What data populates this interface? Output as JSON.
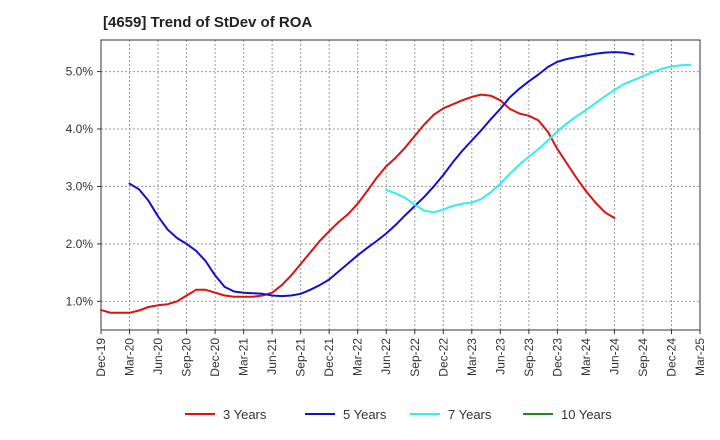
{
  "chart_data": {
    "type": "line",
    "title": "[4659]  Trend of StDev of ROA",
    "xlabel": "",
    "ylabel": "",
    "x_categories": [
      "Dec-19",
      "Mar-20",
      "Jun-20",
      "Sep-20",
      "Dec-20",
      "Mar-21",
      "Jun-21",
      "Sep-21",
      "Dec-21",
      "Mar-22",
      "Jun-22",
      "Sep-22",
      "Dec-22",
      "Mar-23",
      "Jun-23",
      "Sep-23",
      "Dec-23",
      "Mar-24",
      "Jun-24",
      "Sep-24",
      "Dec-24",
      "Mar-25"
    ],
    "ylim": [
      0.5,
      5.55
    ],
    "yticks": [
      1.0,
      2.0,
      3.0,
      4.0,
      5.0
    ],
    "ytick_labels": [
      "1.0%",
      "2.0%",
      "3.0%",
      "4.0%",
      "5.0%"
    ],
    "grid": true,
    "legend_position": "bottom",
    "series": [
      {
        "name": "3 Years",
        "color": "#dd1111",
        "values": [
          [
            0,
            0.85
          ],
          [
            1,
            0.8
          ],
          [
            2,
            0.8
          ],
          [
            3,
            0.8
          ],
          [
            4,
            0.84
          ],
          [
            5,
            0.9
          ],
          [
            6,
            0.93
          ],
          [
            7,
            0.95
          ],
          [
            8,
            1.0
          ],
          [
            9,
            1.1
          ],
          [
            10,
            1.2
          ],
          [
            11,
            1.2
          ],
          [
            12,
            1.15
          ],
          [
            13,
            1.1
          ],
          [
            14,
            1.08
          ],
          [
            15,
            1.08
          ],
          [
            16,
            1.08
          ],
          [
            17,
            1.1
          ],
          [
            18,
            1.15
          ],
          [
            19,
            1.28
          ],
          [
            20,
            1.45
          ],
          [
            21,
            1.65
          ],
          [
            22,
            1.85
          ],
          [
            23,
            2.05
          ],
          [
            24,
            2.22
          ],
          [
            25,
            2.38
          ],
          [
            26,
            2.52
          ],
          [
            27,
            2.7
          ],
          [
            28,
            2.92
          ],
          [
            29,
            3.15
          ],
          [
            30,
            3.35
          ],
          [
            31,
            3.5
          ],
          [
            32,
            3.68
          ],
          [
            33,
            3.88
          ],
          [
            34,
            4.08
          ],
          [
            35,
            4.25
          ],
          [
            36,
            4.36
          ],
          [
            37,
            4.43
          ],
          [
            38,
            4.5
          ],
          [
            39,
            4.56
          ],
          [
            40,
            4.6
          ],
          [
            41,
            4.58
          ],
          [
            42,
            4.5
          ],
          [
            43,
            4.35
          ],
          [
            44,
            4.27
          ],
          [
            45,
            4.23
          ],
          [
            46,
            4.15
          ],
          [
            47,
            3.95
          ],
          [
            48,
            3.65
          ],
          [
            49,
            3.4
          ],
          [
            50,
            3.15
          ],
          [
            51,
            2.92
          ],
          [
            52,
            2.72
          ],
          [
            53,
            2.55
          ],
          [
            54,
            2.45
          ]
        ]
      },
      {
        "name": "5 Years",
        "color": "#1111cc",
        "values": [
          [
            3,
            3.05
          ],
          [
            4,
            2.95
          ],
          [
            5,
            2.75
          ],
          [
            6,
            2.48
          ],
          [
            7,
            2.25
          ],
          [
            8,
            2.1
          ],
          [
            9,
            2.0
          ],
          [
            10,
            1.88
          ],
          [
            11,
            1.7
          ],
          [
            12,
            1.45
          ],
          [
            13,
            1.25
          ],
          [
            14,
            1.17
          ],
          [
            15,
            1.15
          ],
          [
            16,
            1.14
          ],
          [
            17,
            1.13
          ],
          [
            18,
            1.1
          ],
          [
            19,
            1.09
          ],
          [
            20,
            1.1
          ],
          [
            21,
            1.13
          ],
          [
            22,
            1.2
          ],
          [
            23,
            1.28
          ],
          [
            24,
            1.38
          ],
          [
            25,
            1.52
          ],
          [
            26,
            1.66
          ],
          [
            27,
            1.8
          ],
          [
            28,
            1.93
          ],
          [
            29,
            2.05
          ],
          [
            30,
            2.18
          ],
          [
            31,
            2.33
          ],
          [
            32,
            2.5
          ],
          [
            33,
            2.66
          ],
          [
            34,
            2.82
          ],
          [
            35,
            3.0
          ],
          [
            36,
            3.2
          ],
          [
            37,
            3.42
          ],
          [
            38,
            3.62
          ],
          [
            39,
            3.8
          ],
          [
            40,
            3.98
          ],
          [
            41,
            4.17
          ],
          [
            42,
            4.35
          ],
          [
            43,
            4.55
          ],
          [
            44,
            4.7
          ],
          [
            45,
            4.83
          ],
          [
            46,
            4.95
          ],
          [
            47,
            5.08
          ],
          [
            48,
            5.17
          ],
          [
            49,
            5.22
          ],
          [
            50,
            5.25
          ],
          [
            51,
            5.28
          ],
          [
            52,
            5.31
          ],
          [
            53,
            5.33
          ],
          [
            54,
            5.34
          ],
          [
            55,
            5.33
          ],
          [
            56,
            5.3
          ]
        ]
      },
      {
        "name": "7 Years",
        "color": "#33eeee",
        "values": [
          [
            30,
            2.94
          ],
          [
            31,
            2.88
          ],
          [
            32,
            2.8
          ],
          [
            33,
            2.68
          ],
          [
            34,
            2.58
          ],
          [
            35,
            2.55
          ],
          [
            36,
            2.6
          ],
          [
            37,
            2.66
          ],
          [
            38,
            2.7
          ],
          [
            39,
            2.72
          ],
          [
            40,
            2.78
          ],
          [
            41,
            2.9
          ],
          [
            42,
            3.05
          ],
          [
            43,
            3.22
          ],
          [
            44,
            3.38
          ],
          [
            45,
            3.52
          ],
          [
            46,
            3.65
          ],
          [
            47,
            3.8
          ],
          [
            48,
            3.96
          ],
          [
            49,
            4.1
          ],
          [
            50,
            4.22
          ],
          [
            51,
            4.33
          ],
          [
            52,
            4.45
          ],
          [
            53,
            4.57
          ],
          [
            54,
            4.68
          ],
          [
            55,
            4.78
          ],
          [
            56,
            4.85
          ],
          [
            57,
            4.92
          ],
          [
            58,
            4.99
          ],
          [
            59,
            5.05
          ],
          [
            60,
            5.09
          ],
          [
            61,
            5.11
          ],
          [
            62,
            5.12
          ]
        ]
      },
      {
        "name": "10 Years",
        "color": "#228822",
        "values": []
      }
    ]
  }
}
